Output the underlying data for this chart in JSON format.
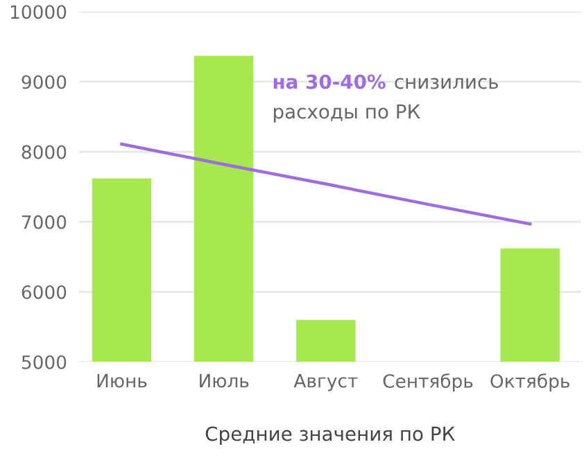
{
  "chart_data": {
    "type": "bar",
    "xlabel": "Средние значения по РК",
    "categories": [
      "Июнь",
      "Июль",
      "Август",
      "Сентябрь",
      "Октябрь"
    ],
    "series": [
      {
        "color": "#a6e84e",
        "values": [
          7620,
          9370,
          5600,
          null,
          6620
        ]
      },
      {
        "type": "line",
        "color": "#9b6de0",
        "values": [
          8110,
          7820,
          7540,
          7250,
          6970
        ]
      }
    ],
    "ylim": [
      5000,
      10000
    ],
    "yticks": [
      5000,
      6000,
      7000,
      8000,
      9000,
      10000
    ],
    "grid": "y",
    "legend": false,
    "annotations": [
      "на 30-40%",
      "снизились",
      "расходы по РК"
    ]
  }
}
